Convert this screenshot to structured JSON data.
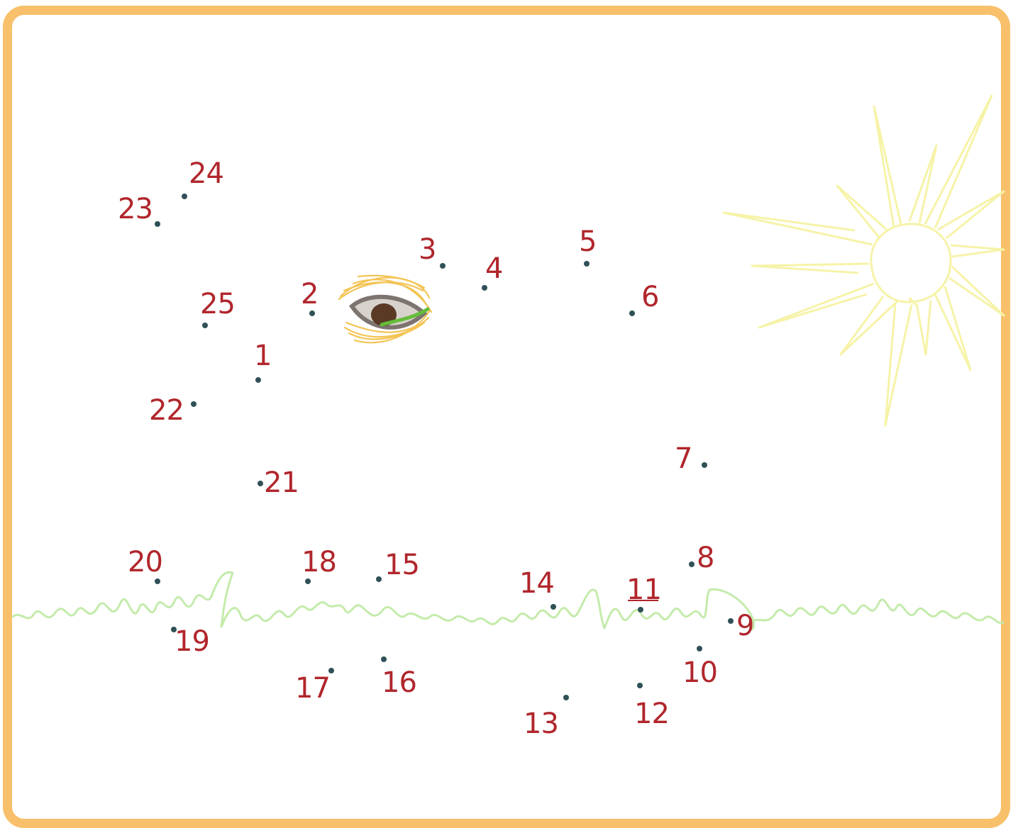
{
  "puzzle": {
    "colors": {
      "frame": "#f8c06a",
      "numbers": "#b0262c",
      "dots": "#2f5056",
      "grass": "#c4ebab",
      "sun": "#f6f3a8"
    },
    "dots": [
      {
        "label": "1"
      },
      {
        "label": "2"
      },
      {
        "label": "3"
      },
      {
        "label": "4"
      },
      {
        "label": "5"
      },
      {
        "label": "6"
      },
      {
        "label": "7"
      },
      {
        "label": "8"
      },
      {
        "label": "9"
      },
      {
        "label": "10"
      },
      {
        "label": "11"
      },
      {
        "label": "12"
      },
      {
        "label": "13"
      },
      {
        "label": "14"
      },
      {
        "label": "15"
      },
      {
        "label": "16"
      },
      {
        "label": "17"
      },
      {
        "label": "18"
      },
      {
        "label": "19"
      },
      {
        "label": "20"
      },
      {
        "label": "21"
      },
      {
        "label": "22"
      },
      {
        "label": "23"
      },
      {
        "label": "24"
      },
      {
        "label": "25"
      }
    ]
  }
}
